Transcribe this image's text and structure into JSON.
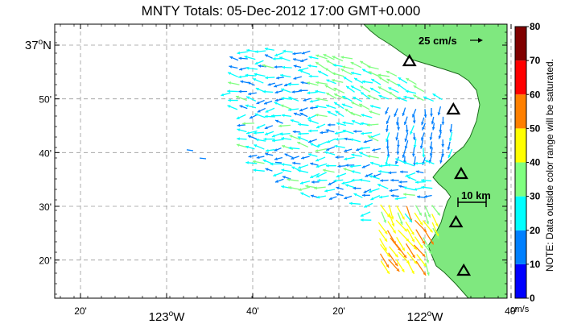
{
  "map": {
    "title": "MNTY Totals: 05-Dec-2012 17:00 GMT+0.000",
    "lat_labels": [
      {
        "text": "37",
        "sup": "o",
        "suffix": "N",
        "lat": 37.0,
        "major": true
      },
      {
        "text": "50'",
        "lat": 36.8333,
        "major": false
      },
      {
        "text": "40'",
        "lat": 36.6667,
        "major": false
      },
      {
        "text": "30'",
        "lat": 36.5,
        "major": false
      },
      {
        "text": "20'",
        "lat": 36.3333,
        "major": false
      }
    ],
    "lon_labels": [
      {
        "text": "20'",
        "lon": -123.3333,
        "major": false
      },
      {
        "text": "123",
        "sup": "o",
        "suffix": "W",
        "lon": -123.0,
        "major": true
      },
      {
        "text": "40'",
        "lon": -122.6667,
        "major": false
      },
      {
        "text": "20'",
        "lon": -122.3333,
        "major": false
      },
      {
        "text": "122",
        "sup": "o",
        "suffix": "W",
        "lon": -122.0,
        "major": true
      },
      {
        "text": "40'",
        "lon": -121.6667,
        "major": false
      }
    ],
    "reference_arrow_label": "25 cm/s",
    "scale_bar_label": "10 km",
    "land_color": "#7fe87f",
    "coast_color": "#1a6b1a",
    "grid_color": "#9a9a9a",
    "sites": [
      {
        "name": "site-north",
        "lon": -122.06,
        "lat": 36.95
      },
      {
        "name": "site-mid-east",
        "lon": -121.89,
        "lat": 36.8
      },
      {
        "name": "site-santa-cruz-point",
        "lon": -121.86,
        "lat": 36.6
      },
      {
        "name": "site-moss-landing",
        "lon": -121.88,
        "lat": 36.45
      },
      {
        "name": "site-monterey",
        "lon": -121.85,
        "lat": 36.3
      }
    ]
  },
  "colorbar": {
    "ticks": [
      "0",
      "10",
      "20",
      "30",
      "40",
      "50",
      "60",
      "70",
      "80"
    ],
    "unit": "cm/s",
    "colors": [
      "#0000ff",
      "#0080ff",
      "#00ffff",
      "#80ff80",
      "#ffff00",
      "#ff8000",
      "#ff0000",
      "#800000"
    ],
    "note": "NOTE: Data outside color range will be saturated."
  }
}
